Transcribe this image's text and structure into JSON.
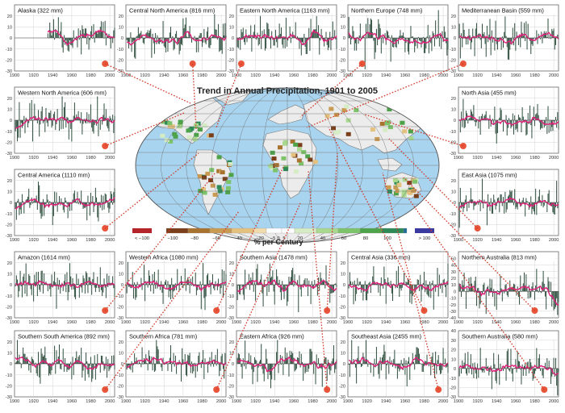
{
  "figure": {
    "map_title": "Trend in Annual Precipitation, 1901 to 2005",
    "colorbar_label": "% per Century",
    "colorbar_ticks": [
      "< −100",
      "−100",
      "−80",
      "−60",
      "−40",
      "−20",
      "−5",
      "0",
      "5",
      "20",
      "40",
      "60",
      "80",
      "100",
      "> 100"
    ],
    "colors": {
      "bar": "#2f4f3f",
      "smooth_line": "#e0207a",
      "marker": "#e8553a",
      "leader_line": "#d23a2a",
      "ocean": "#a9d4ef",
      "land_nodata": "#ececec",
      "scale": [
        "#b3242b",
        "#7a3f1a",
        "#a8732e",
        "#c99a52",
        "#e4c17f",
        "#f2dcae",
        "#ffffff",
        "#ffffff",
        "#d6ecc4",
        "#a9d88f",
        "#7cc36a",
        "#4ea34a",
        "#2e8b57",
        "#1f6e9a",
        "#3a3aa0"
      ]
    }
  },
  "chart_data": [
    {
      "type": "bar",
      "title": "Alaska (322 mm)",
      "x_range": [
        1900,
        2005
      ],
      "data_start": 1935,
      "ylim": [
        -30,
        30
      ],
      "yticks": [
        -30,
        -20,
        -10,
        0,
        10,
        20
      ],
      "xticks": [
        1900,
        1920,
        1940,
        1960,
        1980,
        2000
      ],
      "marker_x": 1995
    },
    {
      "type": "bar",
      "title": "Central North America (816 mm)",
      "x_range": [
        1900,
        2005
      ],
      "data_start": 1901,
      "ylim": [
        -30,
        30
      ],
      "yticks": [
        -30,
        -20,
        -10,
        0,
        10,
        20
      ],
      "xticks": [
        1900,
        1920,
        1940,
        1960,
        1980,
        2000
      ],
      "marker_x": 1970
    },
    {
      "type": "bar",
      "title": "Eastern North America (1163 mm)",
      "x_range": [
        1900,
        2005
      ],
      "data_start": 1901,
      "ylim": [
        -30,
        30
      ],
      "yticks": [
        -30,
        -20,
        -10,
        0,
        10,
        20
      ],
      "xticks": [
        1900,
        1920,
        1940,
        1960,
        1980,
        2000
      ],
      "marker_x": 1905
    },
    {
      "type": "bar",
      "title": "Northern Europe (748 mm)",
      "x_range": [
        1900,
        2005
      ],
      "data_start": 1901,
      "ylim": [
        -30,
        30
      ],
      "yticks": [
        -30,
        -20,
        -10,
        0,
        10,
        20
      ],
      "xticks": [
        1900,
        1920,
        1940,
        1960,
        1980,
        2000
      ],
      "marker_x": 1915
    },
    {
      "type": "bar",
      "title": "Mediterranean Basin (559 mm)",
      "x_range": [
        1900,
        2005
      ],
      "data_start": 1901,
      "ylim": [
        -30,
        30
      ],
      "yticks": [
        -30,
        -20,
        -10,
        0,
        10,
        20
      ],
      "xticks": [
        1900,
        1920,
        1940,
        1960,
        1980,
        2000
      ],
      "marker_x": 1905
    },
    {
      "type": "bar",
      "title": "Western North America (606 mm)",
      "x_range": [
        1900,
        2005
      ],
      "data_start": 1901,
      "ylim": [
        -30,
        30
      ],
      "yticks": [
        -30,
        -20,
        -10,
        0,
        10,
        20
      ],
      "xticks": [
        1900,
        1920,
        1940,
        1960,
        1980,
        2000
      ],
      "marker_x": 1995
    },
    {
      "type": "bar",
      "title": "North Asia (455 mm)",
      "x_range": [
        1900,
        2005
      ],
      "data_start": 1901,
      "ylim": [
        -30,
        30
      ],
      "yticks": [
        -30,
        -20,
        -10,
        0,
        10,
        20
      ],
      "xticks": [
        1900,
        1920,
        1940,
        1960,
        1980,
        2000
      ],
      "marker_x": 1905
    },
    {
      "type": "bar",
      "title": "Central America (1110 mm)",
      "x_range": [
        1900,
        2005
      ],
      "data_start": 1901,
      "ylim": [
        -30,
        30
      ],
      "yticks": [
        -30,
        -20,
        -10,
        0,
        10,
        20
      ],
      "xticks": [
        1900,
        1920,
        1940,
        1960,
        1980,
        2000
      ],
      "marker_x": 1995
    },
    {
      "type": "bar",
      "title": "East Asia (1075 mm)",
      "x_range": [
        1900,
        2005
      ],
      "data_start": 1901,
      "ylim": [
        -30,
        30
      ],
      "yticks": [
        -30,
        -20,
        -10,
        0,
        10,
        20
      ],
      "xticks": [
        1900,
        1920,
        1940,
        1960,
        1980,
        2000
      ],
      "marker_x": 1920
    },
    {
      "type": "bar",
      "title": "Amazon (1614 mm)",
      "x_range": [
        1900,
        2005
      ],
      "data_start": 1901,
      "ylim": [
        -30,
        30
      ],
      "yticks": [
        -30,
        -20,
        -10,
        0,
        10,
        20
      ],
      "xticks": [
        1900,
        1920,
        1940,
        1960,
        1980,
        2000
      ],
      "marker_x": 1995
    },
    {
      "type": "bar",
      "title": "Western Africa (1080 mm)",
      "x_range": [
        1900,
        2005
      ],
      "data_start": 1901,
      "ylim": [
        -30,
        30
      ],
      "yticks": [
        -30,
        -20,
        -10,
        0,
        10,
        20
      ],
      "xticks": [
        1900,
        1920,
        1940,
        1960,
        1980,
        2000
      ],
      "marker_x": 1995
    },
    {
      "type": "bar",
      "title": "Southern Asia (1478 mm)",
      "x_range": [
        1900,
        2005
      ],
      "data_start": 1901,
      "ylim": [
        -30,
        30
      ],
      "yticks": [
        -30,
        -20,
        -10,
        0,
        10,
        20
      ],
      "xticks": [
        1900,
        1920,
        1940,
        1960,
        1980,
        2000
      ],
      "marker_x": 1995
    },
    {
      "type": "bar",
      "title": "Central Asia (336 mm)",
      "x_range": [
        1900,
        2005
      ],
      "data_start": 1901,
      "ylim": [
        -30,
        30
      ],
      "yticks": [
        -30,
        -20,
        -10,
        0,
        10,
        20
      ],
      "xticks": [
        1900,
        1920,
        1940,
        1960,
        1980,
        2000
      ],
      "marker_x": 1980
    },
    {
      "type": "bar",
      "title": "Northern Australia (813 mm)",
      "x_range": [
        1900,
        2005
      ],
      "data_start": 1901,
      "ylim": [
        -40,
        60
      ],
      "yticks": [
        -40,
        -30,
        -20,
        -10,
        0,
        10,
        20,
        30,
        40,
        50
      ],
      "xticks": [
        1900,
        1920,
        1940,
        1960,
        1980,
        2000
      ],
      "marker_x": 1980
    },
    {
      "type": "bar",
      "title": "Southern South America (892 mm)",
      "x_range": [
        1900,
        2005
      ],
      "data_start": 1901,
      "ylim": [
        -30,
        30
      ],
      "yticks": [
        -30,
        -20,
        -10,
        0,
        10,
        20
      ],
      "xticks": [
        1900,
        1920,
        1940,
        1960,
        1980,
        2000
      ],
      "marker_x": 1995
    },
    {
      "type": "bar",
      "title": "Southern Africa (781 mm)",
      "x_range": [
        1900,
        2005
      ],
      "data_start": 1901,
      "ylim": [
        -30,
        30
      ],
      "yticks": [
        -30,
        -20,
        -10,
        0,
        10,
        20
      ],
      "xticks": [
        1900,
        1920,
        1940,
        1960,
        1980,
        2000
      ],
      "marker_x": 1995
    },
    {
      "type": "bar",
      "title": "Eastern Africa (926 mm)",
      "x_range": [
        1900,
        2005
      ],
      "data_start": 1901,
      "ylim": [
        -30,
        30
      ],
      "yticks": [
        -30,
        -20,
        -10,
        0,
        10,
        20
      ],
      "xticks": [
        1900,
        1920,
        1940,
        1960,
        1980,
        2000
      ],
      "marker_x": 1995
    },
    {
      "type": "bar",
      "title": "Southeast Asia (2455 mm)",
      "x_range": [
        1900,
        2005
      ],
      "data_start": 1901,
      "ylim": [
        -30,
        30
      ],
      "yticks": [
        -30,
        -20,
        -10,
        0,
        10,
        20
      ],
      "xticks": [
        1900,
        1920,
        1940,
        1960,
        1980,
        2000
      ],
      "marker_x": 1995
    },
    {
      "type": "bar",
      "title": "Southern Australia (580 mm)",
      "x_range": [
        1900,
        2005
      ],
      "data_start": 1901,
      "ylim": [
        -30,
        40
      ],
      "yticks": [
        -30,
        -20,
        -10,
        0,
        10,
        20,
        30,
        40
      ],
      "xticks": [
        1900,
        1920,
        1940,
        1960,
        1980,
        2000
      ],
      "marker_x": 1990
    }
  ]
}
